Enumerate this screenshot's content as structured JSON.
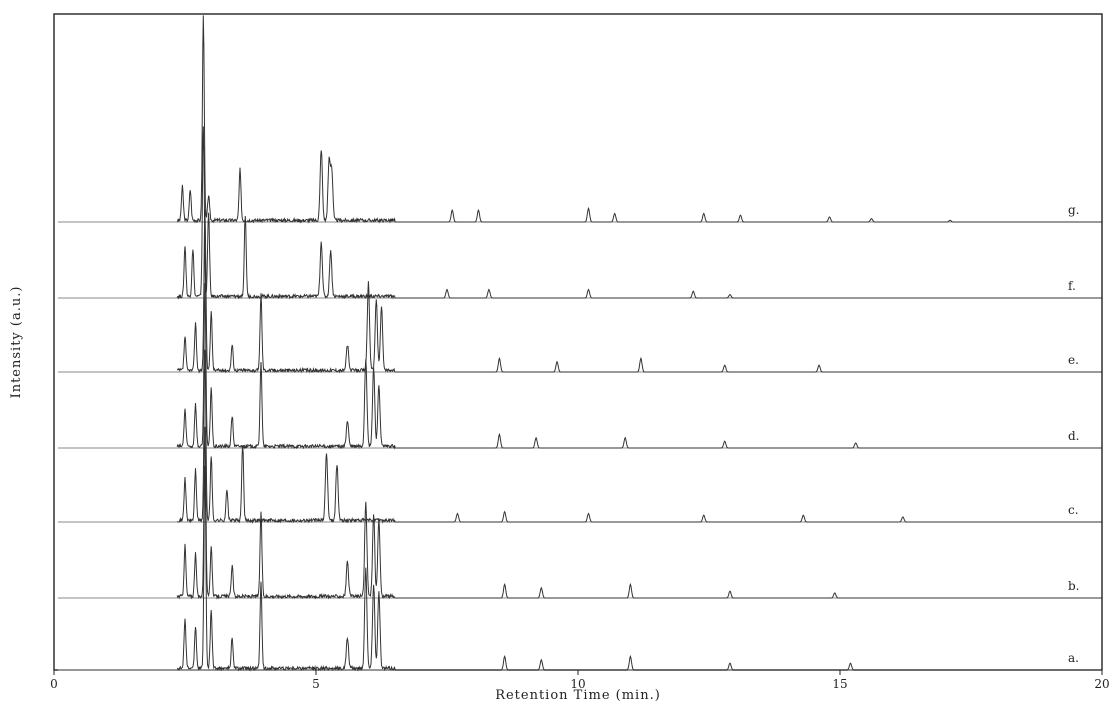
{
  "chart_data": {
    "type": "line",
    "title": "",
    "xlabel": "Retention Time (min.)",
    "ylabel": "Intensity (a.u.)",
    "xlim": [
      0,
      20
    ],
    "xticks": [
      0,
      5,
      10,
      15,
      20
    ],
    "xtick_labels": [
      "0",
      "5",
      "10",
      "15",
      "20"
    ],
    "grid": false,
    "series": [
      {
        "name": "g.",
        "peaks": [
          [
            2.45,
            0.2
          ],
          [
            2.6,
            0.18
          ],
          [
            2.85,
            1.2
          ],
          [
            2.95,
            0.15
          ],
          [
            3.55,
            0.3
          ],
          [
            5.1,
            0.42
          ],
          [
            5.25,
            0.35
          ],
          [
            5.3,
            0.3
          ],
          [
            7.6,
            0.07
          ],
          [
            8.1,
            0.07
          ],
          [
            10.2,
            0.08
          ],
          [
            10.7,
            0.05
          ],
          [
            12.4,
            0.05
          ],
          [
            13.1,
            0.04
          ],
          [
            14.8,
            0.03
          ],
          [
            15.6,
            0.02
          ],
          [
            17.1,
            0.01
          ]
        ]
      },
      {
        "name": "f.",
        "peaks": [
          [
            2.5,
            0.3
          ],
          [
            2.65,
            0.28
          ],
          [
            2.85,
            1.0
          ],
          [
            2.95,
            0.5
          ],
          [
            3.65,
            0.48
          ],
          [
            5.1,
            0.32
          ],
          [
            5.28,
            0.27
          ],
          [
            7.5,
            0.05
          ],
          [
            8.3,
            0.05
          ],
          [
            10.2,
            0.05
          ],
          [
            12.2,
            0.04
          ],
          [
            12.9,
            0.02
          ]
        ]
      },
      {
        "name": "e.",
        "peaks": [
          [
            2.5,
            0.2
          ],
          [
            2.7,
            0.28
          ],
          [
            2.88,
            0.95
          ],
          [
            3.0,
            0.35
          ],
          [
            3.4,
            0.15
          ],
          [
            3.95,
            0.45
          ],
          [
            5.6,
            0.15
          ],
          [
            6.0,
            0.52
          ],
          [
            6.15,
            0.42
          ],
          [
            6.25,
            0.38
          ],
          [
            8.5,
            0.08
          ],
          [
            9.6,
            0.06
          ],
          [
            11.2,
            0.08
          ],
          [
            12.8,
            0.04
          ],
          [
            14.6,
            0.04
          ]
        ]
      },
      {
        "name": "d.",
        "peaks": [
          [
            2.5,
            0.22
          ],
          [
            2.7,
            0.25
          ],
          [
            2.88,
            0.95
          ],
          [
            3.0,
            0.35
          ],
          [
            3.4,
            0.18
          ],
          [
            3.95,
            0.5
          ],
          [
            5.6,
            0.15
          ],
          [
            5.95,
            0.52
          ],
          [
            6.1,
            0.46
          ],
          [
            6.2,
            0.36
          ],
          [
            8.5,
            0.08
          ],
          [
            9.2,
            0.06
          ],
          [
            10.9,
            0.06
          ],
          [
            12.8,
            0.04
          ],
          [
            15.3,
            0.03
          ]
        ]
      },
      {
        "name": "c.",
        "peaks": [
          [
            2.5,
            0.25
          ],
          [
            2.7,
            0.3
          ],
          [
            2.88,
            1.0
          ],
          [
            3.0,
            0.38
          ],
          [
            3.3,
            0.18
          ],
          [
            3.6,
            0.45
          ],
          [
            5.2,
            0.4
          ],
          [
            5.4,
            0.33
          ],
          [
            7.7,
            0.05
          ],
          [
            8.6,
            0.06
          ],
          [
            10.2,
            0.05
          ],
          [
            12.4,
            0.04
          ],
          [
            14.3,
            0.04
          ],
          [
            16.2,
            0.03
          ]
        ]
      },
      {
        "name": "b.",
        "peaks": [
          [
            2.5,
            0.3
          ],
          [
            2.7,
            0.25
          ],
          [
            2.88,
            1.0
          ],
          [
            3.0,
            0.3
          ],
          [
            3.4,
            0.18
          ],
          [
            3.95,
            0.5
          ],
          [
            5.6,
            0.2
          ],
          [
            5.95,
            0.55
          ],
          [
            6.1,
            0.48
          ],
          [
            6.2,
            0.45
          ],
          [
            8.6,
            0.08
          ],
          [
            9.3,
            0.06
          ],
          [
            11.0,
            0.08
          ],
          [
            12.9,
            0.04
          ],
          [
            14.9,
            0.03
          ]
        ]
      },
      {
        "name": "a.",
        "peaks": [
          [
            2.5,
            0.3
          ],
          [
            2.7,
            0.25
          ],
          [
            2.88,
            1.2
          ],
          [
            3.0,
            0.35
          ],
          [
            3.4,
            0.18
          ],
          [
            3.95,
            0.5
          ],
          [
            5.6,
            0.18
          ],
          [
            5.95,
            0.6
          ],
          [
            6.1,
            0.5
          ],
          [
            6.2,
            0.45
          ],
          [
            8.6,
            0.08
          ],
          [
            9.3,
            0.06
          ],
          [
            11.0,
            0.08
          ],
          [
            12.9,
            0.04
          ],
          [
            15.2,
            0.04
          ]
        ]
      }
    ]
  }
}
